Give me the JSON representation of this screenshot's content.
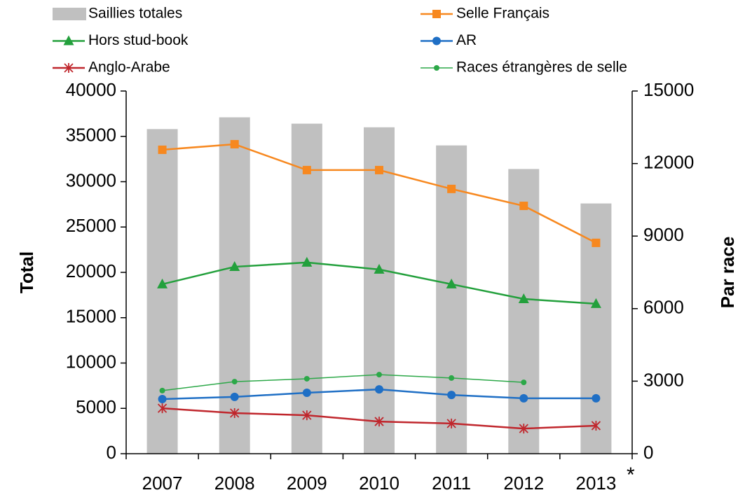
{
  "chart_data": {
    "type": "combo",
    "categories": [
      "2007",
      "2008",
      "2009",
      "2010",
      "2011",
      "2012",
      "2013"
    ],
    "annotation": "*",
    "y_label": "Total",
    "y2_label": "Par race",
    "ylim": [
      0,
      40000
    ],
    "yticks": [
      0,
      5000,
      10000,
      15000,
      20000,
      25000,
      30000,
      35000,
      40000
    ],
    "y2lim": [
      0,
      15000
    ],
    "y2ticks": [
      0,
      3000,
      6000,
      9000,
      12000,
      15000
    ],
    "grid": false,
    "legend": "top",
    "series": [
      {
        "name": "Saillies totales",
        "type": "bar",
        "color": "#c0c0c0",
        "values": [
          35800,
          37100,
          36400,
          36000,
          34000,
          31400,
          27600
        ]
      },
      {
        "name": "Selle Français",
        "type": "line",
        "axis": "y2",
        "marker": "square",
        "color": "#f7881f",
        "values": [
          12570,
          12800,
          11730,
          11730,
          10950,
          10250,
          8720
        ]
      },
      {
        "name": "Hors stud-book",
        "type": "line",
        "axis": "y2",
        "marker": "triangle",
        "color": "#23a03c",
        "values": [
          7010,
          7730,
          7910,
          7620,
          7010,
          6400,
          6200
        ]
      },
      {
        "name": "AR",
        "type": "line",
        "axis": "y2",
        "marker": "circle",
        "color": "#1f6fc5",
        "values": [
          2260,
          2350,
          2520,
          2660,
          2430,
          2290,
          2290
        ]
      },
      {
        "name": "Anglo-Arabe",
        "type": "line",
        "axis": "y2",
        "marker": "asterisk",
        "color": "#c0272d",
        "values": [
          1880,
          1680,
          1590,
          1330,
          1250,
          1040,
          1160
        ]
      },
      {
        "name": "Races étrangères de selle",
        "type": "line",
        "axis": "y2",
        "marker": "dot",
        "color": "#2ca848",
        "values": [
          2610,
          2980,
          3100,
          3270,
          3130,
          2950,
          null
        ]
      }
    ]
  }
}
